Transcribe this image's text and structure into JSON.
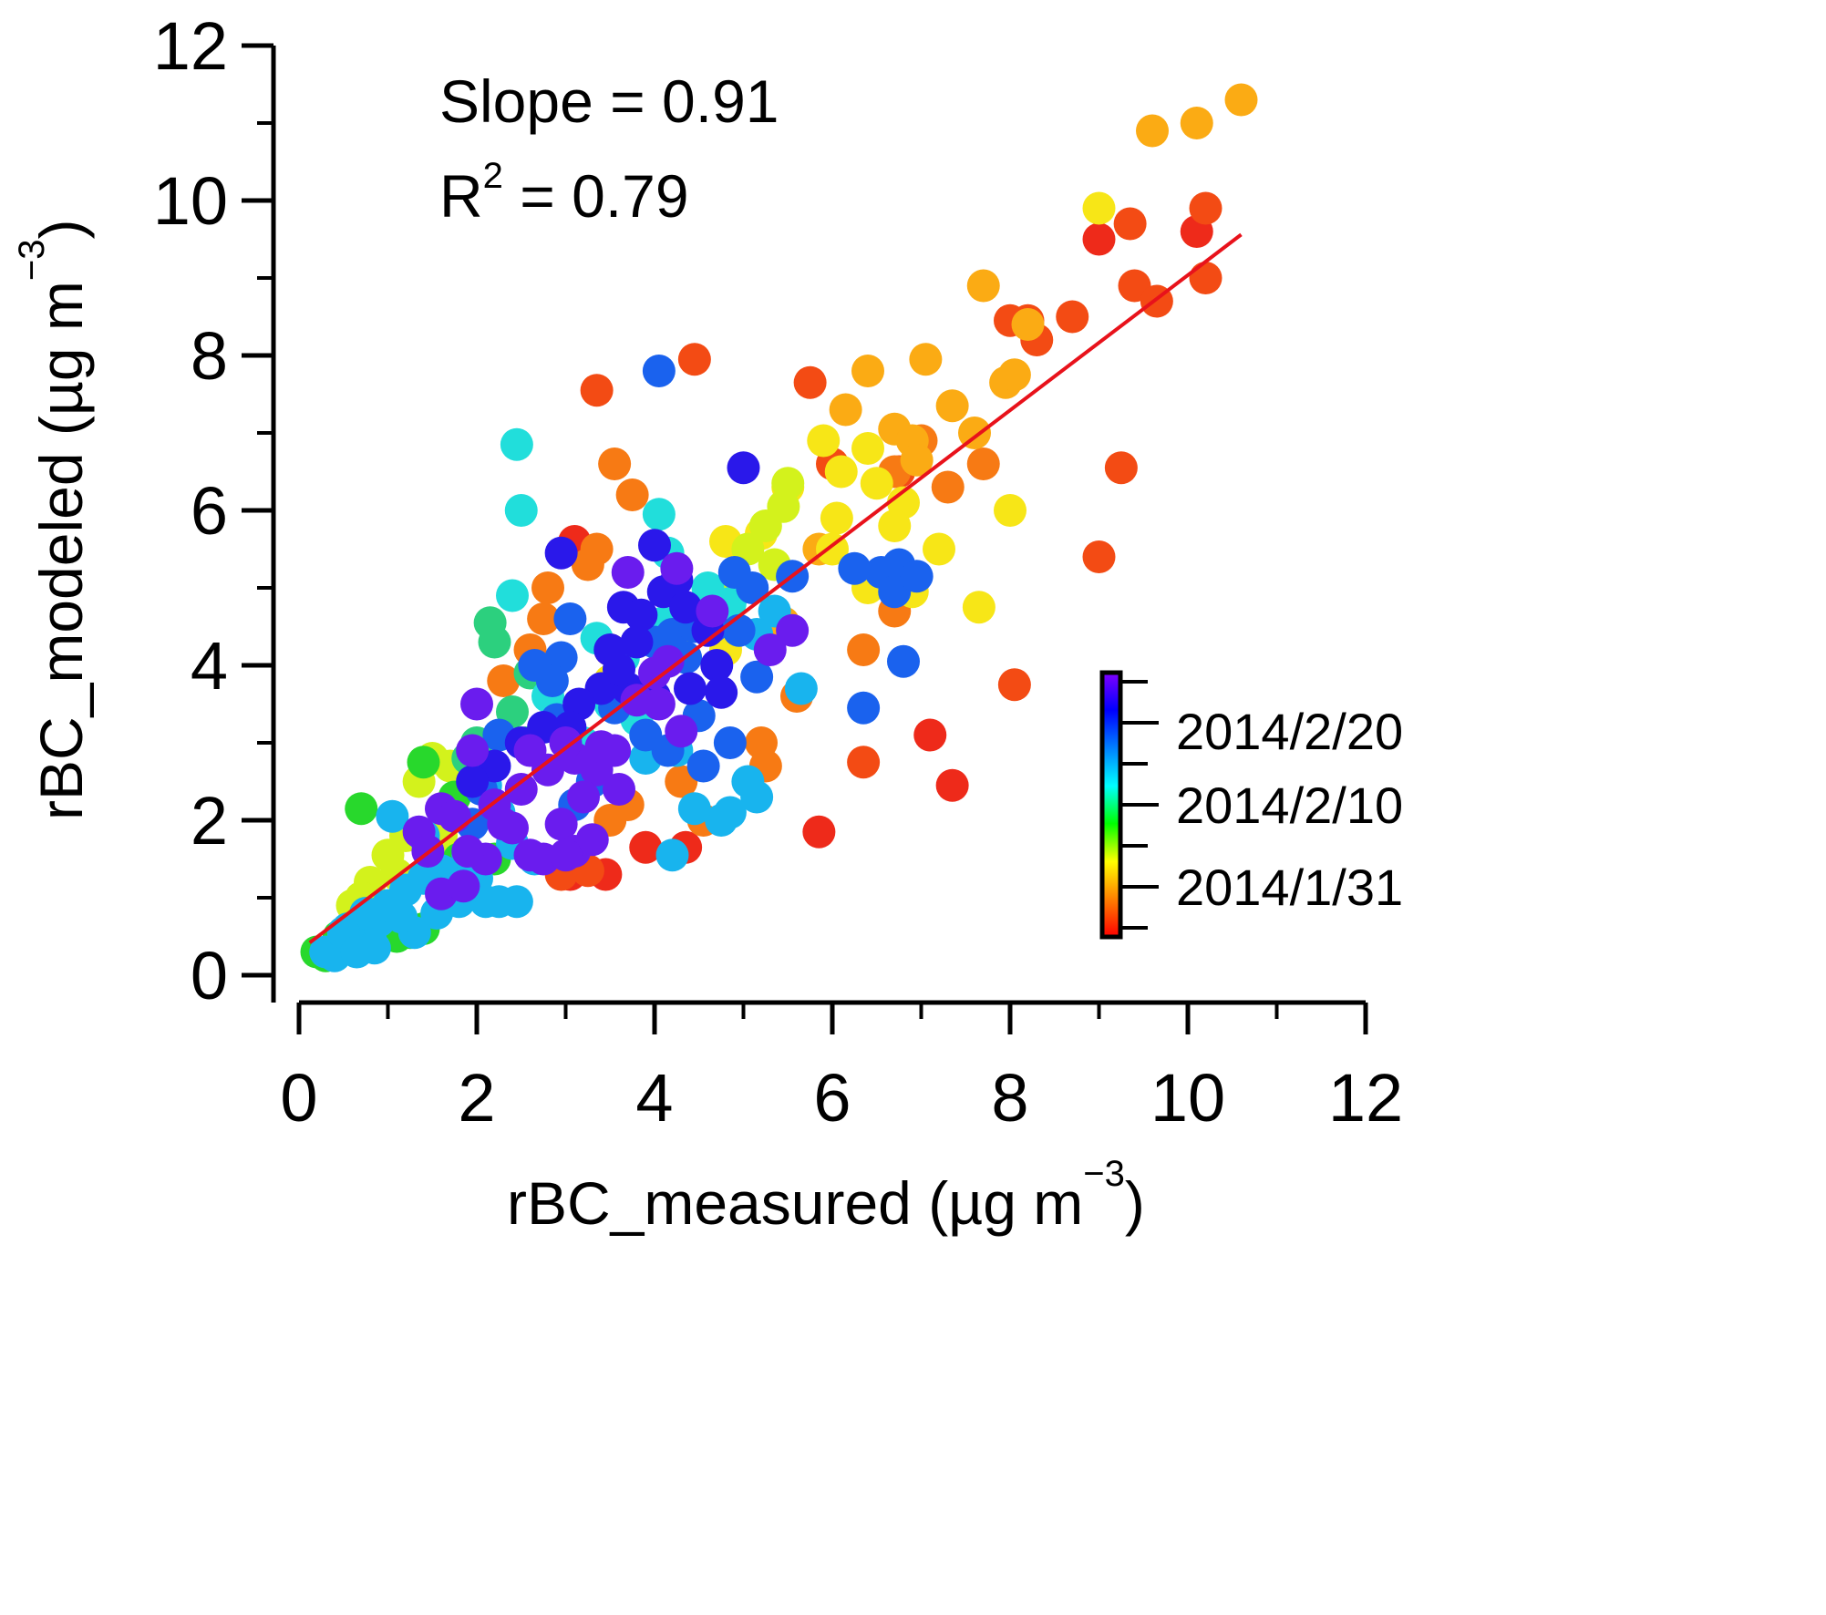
{
  "chart_data": {
    "type": "scatter",
    "title": "",
    "xlabel": "rBC_measured (µg m",
    "xlabel_sup": "−3",
    "xlabel_end": ")",
    "ylabel": "rBC_modeled (µg m",
    "ylabel_sup": "−3",
    "ylabel_end": ")",
    "xlim": [
      -0.3,
      12
    ],
    "ylim": [
      -0.3,
      12
    ],
    "xticks": [
      0,
      2,
      4,
      6,
      8,
      10,
      12
    ],
    "yticks": [
      0,
      2,
      4,
      6,
      8,
      10,
      12
    ],
    "annotations": {
      "slope": "Slope = 0.91",
      "r2_prefix": "R",
      "r2_sup": "2",
      "r2_suffix": " = 0.79"
    },
    "fit_line": {
      "x": [
        0.12,
        10.6
      ],
      "y": [
        0.42,
        9.56
      ],
      "color": "#e8121b",
      "slope": 0.91
    },
    "colorbar": {
      "labels": [
        "2014/2/20",
        "2014/2/10",
        "2014/1/31"
      ],
      "label_values": [
        0.8,
        0.5,
        0.167
      ],
      "stops": [
        "#ff0000",
        "#ff7f00",
        "#ffff00",
        "#00ff00",
        "#00ffff",
        "#0080ff",
        "#0000ff",
        "#8000ff"
      ]
    },
    "point_groups": [
      {
        "name": "red",
        "color": "#ee2a1a",
        "points": [
          [
            3.1,
            5.6
          ],
          [
            3.05,
            1.3
          ],
          [
            3.45,
            1.3
          ],
          [
            3.9,
            1.65
          ],
          [
            4.35,
            1.65
          ],
          [
            5.85,
            1.85
          ],
          [
            7.1,
            3.1
          ],
          [
            7.35,
            2.45
          ],
          [
            9.0,
            9.5
          ],
          [
            10.1,
            9.6
          ]
        ]
      },
      {
        "name": "red-orange",
        "color": "#f34b14",
        "points": [
          [
            4.45,
            7.95
          ],
          [
            3.35,
            7.55
          ],
          [
            5.75,
            7.65
          ],
          [
            6.0,
            6.6
          ],
          [
            9.25,
            6.55
          ],
          [
            9.0,
            5.4
          ],
          [
            8.05,
            3.75
          ],
          [
            6.35,
            2.75
          ],
          [
            6.75,
            6.5
          ],
          [
            9.35,
            9.7
          ],
          [
            10.2,
            9.9
          ],
          [
            9.4,
            8.9
          ],
          [
            9.65,
            8.7
          ],
          [
            10.2,
            9.0
          ],
          [
            8.0,
            8.45
          ],
          [
            8.3,
            8.2
          ],
          [
            8.7,
            8.5
          ],
          [
            8.2,
            8.45
          ],
          [
            2.95,
            1.3
          ],
          [
            3.25,
            1.35
          ]
        ]
      },
      {
        "name": "orange",
        "color": "#f77a14",
        "points": [
          [
            3.55,
            6.6
          ],
          [
            3.75,
            6.2
          ],
          [
            3.35,
            5.5
          ],
          [
            2.75,
            4.6
          ],
          [
            2.8,
            5.0
          ],
          [
            2.6,
            4.2
          ],
          [
            2.3,
            3.8
          ],
          [
            3.5,
            4.2
          ],
          [
            4.3,
            2.5
          ],
          [
            4.55,
            2.0
          ],
          [
            5.2,
            3.0
          ],
          [
            5.25,
            2.7
          ],
          [
            5.6,
            3.6
          ],
          [
            6.35,
            4.2
          ],
          [
            6.7,
            4.7
          ],
          [
            6.7,
            6.5
          ],
          [
            7.0,
            6.9
          ],
          [
            7.3,
            6.3
          ],
          [
            7.7,
            6.6
          ],
          [
            3.5,
            2.0
          ],
          [
            3.7,
            2.2
          ],
          [
            3.25,
            5.3
          ]
        ]
      },
      {
        "name": "light-orange",
        "color": "#fbab14",
        "points": [
          [
            9.6,
            10.9
          ],
          [
            10.1,
            11.0
          ],
          [
            10.6,
            11.3
          ],
          [
            7.7,
            8.9
          ],
          [
            8.2,
            8.4
          ],
          [
            7.05,
            7.95
          ],
          [
            6.4,
            7.8
          ],
          [
            6.15,
            7.3
          ],
          [
            7.35,
            7.35
          ],
          [
            7.95,
            7.65
          ],
          [
            8.05,
            7.75
          ],
          [
            6.7,
            7.05
          ],
          [
            6.9,
            6.9
          ],
          [
            7.6,
            7.0
          ],
          [
            6.95,
            6.65
          ],
          [
            5.45,
            4.55
          ],
          [
            5.85,
            5.5
          ]
        ]
      },
      {
        "name": "yellow",
        "color": "#f7e617",
        "points": [
          [
            9.0,
            9.9
          ],
          [
            8.0,
            6.0
          ],
          [
            7.65,
            4.75
          ],
          [
            7.2,
            5.5
          ],
          [
            5.9,
            6.9
          ],
          [
            6.1,
            6.5
          ],
          [
            6.4,
            6.8
          ],
          [
            6.5,
            6.35
          ],
          [
            6.8,
            6.1
          ],
          [
            6.7,
            5.8
          ],
          [
            5.2,
            5.7
          ],
          [
            6.4,
            5.0
          ],
          [
            6.9,
            4.95
          ],
          [
            4.8,
            5.6
          ],
          [
            6.05,
            5.9
          ],
          [
            5.5,
            6.3
          ],
          [
            4.5,
            4.7
          ],
          [
            4.8,
            4.2
          ],
          [
            3.5,
            3.8
          ],
          [
            6.0,
            5.5
          ]
        ]
      },
      {
        "name": "yellow-green",
        "color": "#d3f21c",
        "points": [
          [
            5.05,
            5.5
          ],
          [
            5.25,
            5.8
          ],
          [
            5.45,
            6.05
          ],
          [
            5.5,
            6.35
          ],
          [
            5.35,
            5.3
          ],
          [
            4.9,
            5.1
          ],
          [
            4.6,
            4.85
          ],
          [
            4.3,
            4.55
          ],
          [
            4.2,
            4.3
          ],
          [
            1.0,
            1.55
          ],
          [
            0.8,
            1.2
          ],
          [
            1.2,
            1.8
          ],
          [
            1.35,
            2.5
          ],
          [
            1.5,
            2.8
          ],
          [
            1.7,
            2.7
          ],
          [
            1.6,
            1.8
          ],
          [
            1.1,
            1.3
          ],
          [
            0.7,
            1.0
          ],
          [
            0.6,
            0.9
          ]
        ]
      },
      {
        "name": "green",
        "color": "#28d82c",
        "points": [
          [
            0.7,
            2.15
          ],
          [
            1.4,
            2.75
          ],
          [
            1.75,
            2.3
          ],
          [
            2.05,
            2.6
          ],
          [
            2.2,
            1.5
          ],
          [
            0.6,
            0.6
          ],
          [
            0.55,
            0.4
          ],
          [
            0.2,
            0.3
          ],
          [
            0.3,
            0.25
          ],
          [
            0.45,
            0.5
          ],
          [
            1.1,
            0.5
          ],
          [
            1.25,
            0.55
          ],
          [
            1.4,
            0.6
          ],
          [
            0.9,
            0.8
          ],
          [
            1.8,
            1.5
          ]
        ]
      },
      {
        "name": "sea-green",
        "color": "#2cd07e",
        "points": [
          [
            2.15,
            4.55
          ],
          [
            2.2,
            4.3
          ],
          [
            2.6,
            3.9
          ],
          [
            2.4,
            3.4
          ],
          [
            2.55,
            3.0
          ],
          [
            2.0,
            3.0
          ],
          [
            1.9,
            2.8
          ]
        ]
      },
      {
        "name": "cyan",
        "color": "#21dedb",
        "points": [
          [
            2.45,
            6.85
          ],
          [
            2.5,
            6.0
          ],
          [
            2.4,
            4.9
          ],
          [
            3.35,
            4.35
          ],
          [
            3.65,
            4.1
          ],
          [
            4.1,
            4.55
          ],
          [
            4.05,
            5.95
          ],
          [
            4.15,
            5.45
          ],
          [
            4.6,
            5.0
          ],
          [
            4.85,
            4.8
          ],
          [
            3.5,
            3.5
          ],
          [
            3.8,
            3.3
          ],
          [
            3.2,
            3.0
          ],
          [
            2.8,
            3.6
          ]
        ]
      },
      {
        "name": "light-blue",
        "color": "#18b4ee",
        "points": [
          [
            5.65,
            3.7
          ],
          [
            5.35,
            4.7
          ],
          [
            5.15,
            4.4
          ],
          [
            4.75,
            2.0
          ],
          [
            5.05,
            2.5
          ],
          [
            5.15,
            2.3
          ],
          [
            4.45,
            2.15
          ],
          [
            4.2,
            1.55
          ],
          [
            4.85,
            2.1
          ],
          [
            3.9,
            2.8
          ],
          [
            4.25,
            2.9
          ],
          [
            2.1,
            2.45
          ],
          [
            2.25,
            2.1
          ],
          [
            2.4,
            1.7
          ],
          [
            2.65,
            1.5
          ],
          [
            1.9,
            1.55
          ],
          [
            2.25,
            0.95
          ],
          [
            2.45,
            0.95
          ],
          [
            2.1,
            0.95
          ],
          [
            1.8,
            0.95
          ],
          [
            1.55,
            0.8
          ],
          [
            1.3,
            0.55
          ],
          [
            0.9,
            0.7
          ],
          [
            0.8,
            0.5
          ],
          [
            0.6,
            0.4
          ],
          [
            0.4,
            0.25
          ],
          [
            0.3,
            0.3
          ],
          [
            0.55,
            0.6
          ],
          [
            0.75,
            0.8
          ],
          [
            1.0,
            0.9
          ],
          [
            1.2,
            1.1
          ],
          [
            1.4,
            1.25
          ],
          [
            1.6,
            1.35
          ],
          [
            1.05,
            2.05
          ],
          [
            1.4,
            1.8
          ],
          [
            1.7,
            1.2
          ],
          [
            2.0,
            1.25
          ],
          [
            0.5,
            0.55
          ],
          [
            0.65,
            0.3
          ],
          [
            0.85,
            0.35
          ],
          [
            1.15,
            0.75
          ]
        ]
      },
      {
        "name": "blue",
        "color": "#1a62ee",
        "points": [
          [
            4.05,
            7.8
          ],
          [
            6.8,
            4.05
          ],
          [
            6.35,
            3.45
          ],
          [
            4.95,
            4.45
          ],
          [
            5.15,
            3.85
          ],
          [
            4.5,
            3.35
          ],
          [
            4.55,
            2.7
          ],
          [
            4.85,
            3.0
          ],
          [
            4.15,
            2.9
          ],
          [
            3.9,
            3.1
          ],
          [
            3.55,
            3.45
          ],
          [
            3.05,
            4.6
          ],
          [
            2.95,
            4.1
          ],
          [
            2.85,
            3.8
          ],
          [
            2.65,
            4.0
          ],
          [
            2.25,
            3.1
          ],
          [
            2.05,
            2.4
          ],
          [
            1.95,
            1.95
          ],
          [
            3.3,
            2.5
          ],
          [
            3.1,
            2.2
          ],
          [
            2.9,
            3.3
          ],
          [
            6.25,
            5.25
          ],
          [
            6.55,
            5.2
          ],
          [
            6.75,
            5.3
          ],
          [
            6.7,
            4.95
          ],
          [
            6.95,
            5.15
          ],
          [
            5.55,
            5.15
          ],
          [
            5.1,
            5.0
          ],
          [
            4.9,
            5.2
          ],
          [
            4.0,
            4.3
          ],
          [
            4.2,
            4.4
          ],
          [
            4.35,
            4.1
          ],
          [
            4.45,
            4.5
          ],
          [
            4.65,
            4.5
          ]
        ]
      },
      {
        "name": "indigo",
        "color": "#2a18ea",
        "points": [
          [
            5.0,
            6.55
          ],
          [
            2.95,
            5.45
          ],
          [
            4.0,
            5.55
          ],
          [
            4.25,
            5.1
          ],
          [
            3.65,
            4.75
          ],
          [
            3.85,
            4.65
          ],
          [
            4.1,
            4.95
          ],
          [
            4.35,
            4.75
          ],
          [
            4.6,
            4.45
          ],
          [
            4.7,
            4.0
          ],
          [
            4.75,
            3.65
          ],
          [
            4.4,
            3.7
          ],
          [
            4.0,
            3.6
          ],
          [
            3.7,
            3.7
          ],
          [
            3.4,
            3.7
          ],
          [
            3.15,
            3.5
          ],
          [
            3.05,
            3.2
          ],
          [
            2.75,
            3.2
          ],
          [
            2.5,
            3.0
          ],
          [
            2.2,
            2.7
          ],
          [
            1.95,
            2.5
          ],
          [
            3.5,
            4.2
          ],
          [
            3.8,
            4.3
          ],
          [
            3.6,
            3.95
          ]
        ]
      },
      {
        "name": "violet",
        "color": "#6a1cee",
        "points": [
          [
            3.7,
            5.2
          ],
          [
            4.25,
            5.25
          ],
          [
            4.65,
            4.7
          ],
          [
            5.55,
            4.45
          ],
          [
            5.3,
            4.2
          ],
          [
            4.15,
            4.05
          ],
          [
            4.0,
            3.9
          ],
          [
            2.0,
            3.5
          ],
          [
            1.95,
            2.9
          ],
          [
            1.6,
            2.15
          ],
          [
            1.75,
            2.05
          ],
          [
            1.35,
            1.85
          ],
          [
            1.45,
            1.6
          ],
          [
            1.6,
            1.05
          ],
          [
            1.85,
            1.15
          ],
          [
            2.1,
            1.5
          ],
          [
            2.4,
            1.9
          ],
          [
            2.6,
            1.55
          ],
          [
            2.75,
            1.5
          ],
          [
            2.95,
            1.95
          ],
          [
            3.1,
            1.6
          ],
          [
            3.3,
            1.75
          ],
          [
            3.1,
            2.8
          ],
          [
            3.35,
            2.65
          ],
          [
            3.6,
            2.4
          ],
          [
            3.8,
            3.55
          ],
          [
            4.3,
            3.15
          ],
          [
            4.05,
            3.5
          ],
          [
            3.0,
            1.55
          ],
          [
            2.2,
            2.2
          ],
          [
            2.5,
            2.4
          ],
          [
            2.3,
            1.95
          ],
          [
            2.8,
            2.65
          ],
          [
            3.4,
            2.95
          ],
          [
            3.0,
            3.0
          ],
          [
            3.55,
            2.9
          ],
          [
            3.2,
            2.3
          ],
          [
            2.6,
            2.9
          ],
          [
            1.9,
            1.6
          ]
        ]
      }
    ]
  }
}
